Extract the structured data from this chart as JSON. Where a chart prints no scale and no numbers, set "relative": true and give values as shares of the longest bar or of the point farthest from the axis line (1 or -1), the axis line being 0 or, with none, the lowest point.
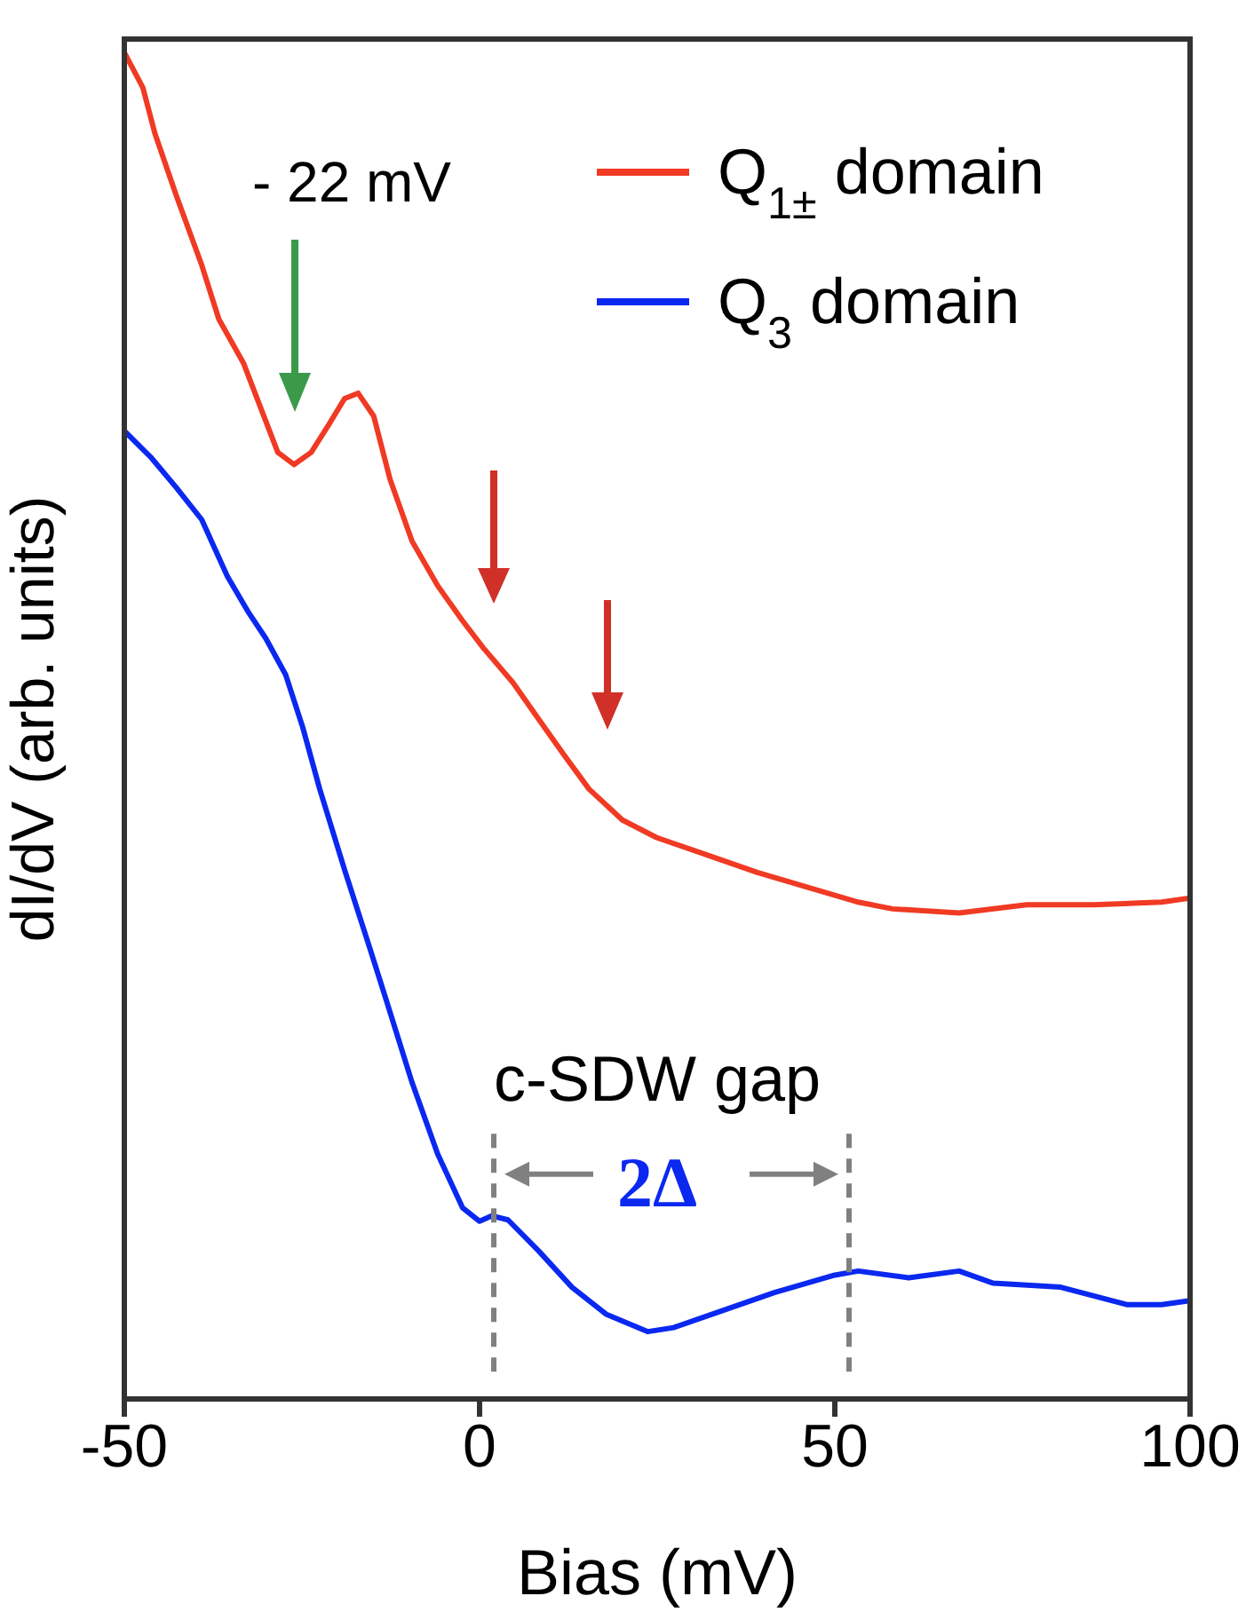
{
  "chart_data": {
    "type": "line",
    "xlabel": "Bias (mV)",
    "ylabel": "dI/dV (arb. units)",
    "relative": true,
    "xlim": [
      -50,
      100
    ],
    "xticks": [
      -50,
      0,
      50,
      100
    ],
    "legend": "top right",
    "marker": "none",
    "line_style": "solid",
    "series": [
      {
        "name": "Q$_{1±}$ domain",
        "color": "#f03a24",
        "x": [
          -50,
          -47.4,
          -45.7,
          -42.7,
          -39.1,
          -36.7,
          -33.2,
          -30.8,
          -28.4,
          -26.1,
          -23.7,
          -21.3,
          -19.0,
          -17.1,
          -14.9,
          -12.6,
          -9.5,
          -5.9,
          -2.4,
          0.5,
          4.7,
          8.3,
          11.8,
          15.4,
          20.1,
          24.9,
          32.0,
          39.1,
          46.2,
          53.3,
          58.1,
          67.5,
          77.0,
          86.5,
          96.0,
          100
        ],
        "values": [
          1.0,
          0.974,
          0.94,
          0.894,
          0.842,
          0.802,
          0.769,
          0.736,
          0.703,
          0.694,
          0.703,
          0.723,
          0.743,
          0.747,
          0.73,
          0.683,
          0.637,
          0.604,
          0.578,
          0.558,
          0.532,
          0.505,
          0.479,
          0.453,
          0.43,
          0.417,
          0.404,
          0.391,
          0.38,
          0.369,
          0.364,
          0.361,
          0.367,
          0.367,
          0.369,
          0.372
        ]
      },
      {
        "name": "Q$_{3}$ domain",
        "color": "#0a28f0",
        "x": [
          -50,
          -46.2,
          -42.7,
          -39.1,
          -35.5,
          -32.5,
          -30.1,
          -27.3,
          -24.9,
          -22.5,
          -19.0,
          -15.4,
          -13.0,
          -9.5,
          -5.9,
          -2.4,
          0.0,
          1.7,
          4.0,
          8.3,
          13.0,
          17.8,
          23.7,
          27.3,
          34.4,
          41.5,
          50.0,
          53.3,
          60.4,
          67.5,
          72.3,
          81.8,
          91.2,
          96.0,
          100
        ],
        "values": [
          0.719,
          0.699,
          0.677,
          0.653,
          0.611,
          0.584,
          0.565,
          0.538,
          0.499,
          0.453,
          0.393,
          0.334,
          0.294,
          0.235,
          0.182,
          0.142,
          0.132,
          0.136,
          0.133,
          0.11,
          0.083,
          0.063,
          0.05,
          0.053,
          0.066,
          0.079,
          0.092,
          0.095,
          0.09,
          0.095,
          0.086,
          0.083,
          0.07,
          0.07,
          0.073
        ]
      }
    ],
    "ref_lines": [
      {
        "axis": "x",
        "value": 2,
        "color": "#808080",
        "line_style": "dashed"
      },
      {
        "axis": "x",
        "value": 52,
        "color": "#808080",
        "line_style": "dashed"
      }
    ],
    "annotations": [
      "- 22 mV",
      "c-SDW gap",
      "2Δ"
    ]
  }
}
